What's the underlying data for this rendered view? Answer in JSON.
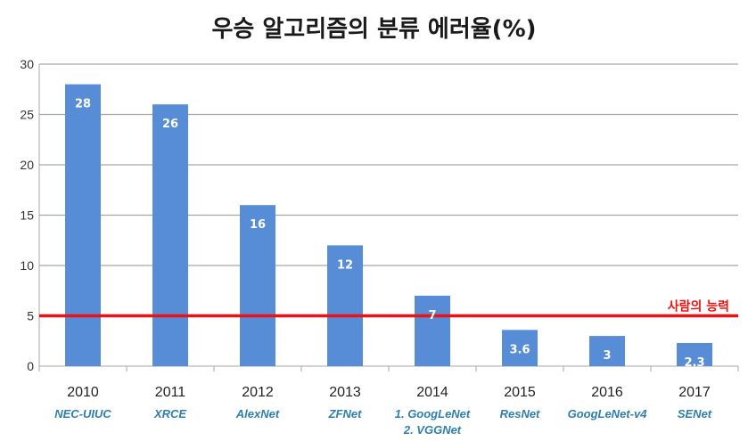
{
  "chart_data": {
    "type": "bar",
    "title": "우승 알고리즘의 분류 에러율(%)",
    "categories": [
      "2010",
      "2011",
      "2012",
      "2013",
      "2014",
      "2015",
      "2016",
      "2017"
    ],
    "algorithms": [
      [
        "NEC-UIUC"
      ],
      [
        "XRCE"
      ],
      [
        "AlexNet"
      ],
      [
        "ZFNet"
      ],
      [
        "1. GoogLeNet",
        "2. VGGNet"
      ],
      [
        "ResNet"
      ],
      [
        "GoogLeNet-v4"
      ],
      [
        "SENet"
      ]
    ],
    "values": [
      28,
      26,
      16,
      12,
      7,
      3.6,
      3,
      2.3
    ],
    "data_labels": [
      "28",
      "26",
      "16",
      "12",
      "7",
      "3.6",
      "3",
      "2.3"
    ],
    "ylim": [
      0,
      30
    ],
    "yticks": [
      0,
      5,
      10,
      15,
      20,
      25,
      30
    ],
    "grid": true,
    "reference_line": {
      "value": 5,
      "label": "사람의 능력",
      "color": "#ee1111"
    },
    "bar_color": "#568dd6"
  }
}
